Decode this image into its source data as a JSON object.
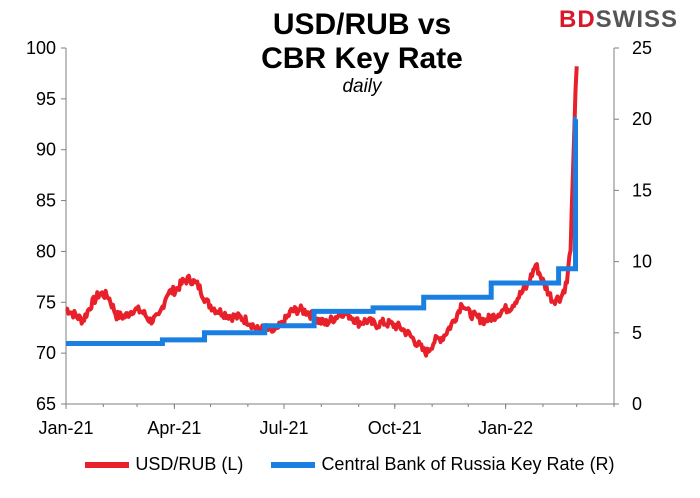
{
  "brand": {
    "part1": "BD",
    "part2": "SWISS"
  },
  "chart_data": {
    "type": "line",
    "title_line1": "USD/RUB vs",
    "title_line2": "CBR Key Rate",
    "subtitle": "daily",
    "x_tick_labels": [
      "Jan-21",
      "Apr-21",
      "Jul-21",
      "Oct-21",
      "Jan-22"
    ],
    "x_tick_dates": [
      "2021-01-01",
      "2021-04-01",
      "2021-07-01",
      "2021-10-01",
      "2022-01-01"
    ],
    "x_range": [
      "2021-01-01",
      "2022-04-01"
    ],
    "y_left": {
      "min": 65,
      "max": 100,
      "ticks": [
        65,
        70,
        75,
        80,
        85,
        90,
        95,
        100
      ]
    },
    "y_right": {
      "min": 0,
      "max": 25,
      "ticks": [
        0,
        5,
        10,
        15,
        20,
        25
      ]
    },
    "grid": false,
    "legend_position": "bottom",
    "colors": {
      "usdrub": "#e8202a",
      "keyrate": "#1a7fe0"
    },
    "series": [
      {
        "name": "USD/RUB (L)",
        "axis": "left",
        "points": [
          [
            "2021-01-01",
            74.4
          ],
          [
            "2021-01-08",
            73.8
          ],
          [
            "2021-01-15",
            73.2
          ],
          [
            "2021-01-22",
            74.8
          ],
          [
            "2021-01-29",
            75.9
          ],
          [
            "2021-02-05",
            75.6
          ],
          [
            "2021-02-12",
            73.7
          ],
          [
            "2021-02-19",
            73.6
          ],
          [
            "2021-02-26",
            74.3
          ],
          [
            "2021-03-05",
            74.1
          ],
          [
            "2021-03-12",
            73.2
          ],
          [
            "2021-03-19",
            73.5
          ],
          [
            "2021-03-26",
            75.9
          ],
          [
            "2021-04-02",
            76.2
          ],
          [
            "2021-04-09",
            77.1
          ],
          [
            "2021-04-14",
            77.3
          ],
          [
            "2021-04-21",
            76.6
          ],
          [
            "2021-04-28",
            75.0
          ],
          [
            "2021-05-05",
            74.3
          ],
          [
            "2021-05-12",
            73.9
          ],
          [
            "2021-05-19",
            73.6
          ],
          [
            "2021-05-26",
            73.5
          ],
          [
            "2021-06-02",
            73.1
          ],
          [
            "2021-06-09",
            72.3
          ],
          [
            "2021-06-16",
            72.4
          ],
          [
            "2021-06-23",
            72.1
          ],
          [
            "2021-06-30",
            72.9
          ],
          [
            "2021-07-07",
            74.1
          ],
          [
            "2021-07-14",
            74.3
          ],
          [
            "2021-07-21",
            74.0
          ],
          [
            "2021-07-28",
            73.3
          ],
          [
            "2021-08-04",
            72.9
          ],
          [
            "2021-08-11",
            73.4
          ],
          [
            "2021-08-18",
            74.0
          ],
          [
            "2021-08-25",
            73.7
          ],
          [
            "2021-09-01",
            73.0
          ],
          [
            "2021-09-08",
            73.2
          ],
          [
            "2021-09-15",
            72.8
          ],
          [
            "2021-09-22",
            73.0
          ],
          [
            "2021-09-29",
            72.8
          ],
          [
            "2021-10-06",
            72.5
          ],
          [
            "2021-10-13",
            71.8
          ],
          [
            "2021-10-20",
            70.9
          ],
          [
            "2021-10-25",
            70.2
          ],
          [
            "2021-10-28",
            70.1
          ],
          [
            "2021-11-03",
            71.2
          ],
          [
            "2021-11-10",
            71.6
          ],
          [
            "2021-11-17",
            72.8
          ],
          [
            "2021-11-22",
            73.9
          ],
          [
            "2021-11-26",
            75.0
          ],
          [
            "2021-12-01",
            74.0
          ],
          [
            "2021-12-08",
            73.5
          ],
          [
            "2021-12-15",
            73.2
          ],
          [
            "2021-12-22",
            73.6
          ],
          [
            "2021-12-29",
            74.2
          ],
          [
            "2022-01-05",
            74.5
          ],
          [
            "2022-01-12",
            75.6
          ],
          [
            "2022-01-19",
            76.6
          ],
          [
            "2022-01-26",
            78.7
          ],
          [
            "2022-02-02",
            76.8
          ],
          [
            "2022-02-09",
            75.2
          ],
          [
            "2022-02-16",
            75.5
          ],
          [
            "2022-02-21",
            77.0
          ],
          [
            "2022-02-24",
            80.5
          ],
          [
            "2022-02-25",
            84.0
          ],
          [
            "2022-02-28",
            95.8
          ],
          [
            "2022-03-01",
            98.2
          ]
        ]
      },
      {
        "name": "Central Bank of Russia Key Rate (R)",
        "axis": "right",
        "points": [
          [
            "2021-01-01",
            4.25
          ],
          [
            "2021-03-22",
            4.25
          ],
          [
            "2021-03-22",
            4.5
          ],
          [
            "2021-04-26",
            4.5
          ],
          [
            "2021-04-26",
            5.0
          ],
          [
            "2021-06-15",
            5.0
          ],
          [
            "2021-06-15",
            5.5
          ],
          [
            "2021-07-26",
            5.5
          ],
          [
            "2021-07-26",
            6.5
          ],
          [
            "2021-09-13",
            6.5
          ],
          [
            "2021-09-13",
            6.75
          ],
          [
            "2021-10-25",
            6.75
          ],
          [
            "2021-10-25",
            7.5
          ],
          [
            "2021-12-20",
            7.5
          ],
          [
            "2021-12-20",
            8.5
          ],
          [
            "2022-02-14",
            8.5
          ],
          [
            "2022-02-14",
            9.5
          ],
          [
            "2022-02-28",
            9.5
          ],
          [
            "2022-02-28",
            20.0
          ],
          [
            "2022-03-01",
            20.0
          ]
        ]
      }
    ]
  }
}
